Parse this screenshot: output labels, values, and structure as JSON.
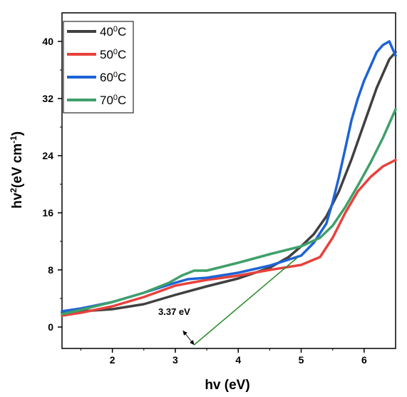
{
  "chart_data": {
    "type": "line",
    "xlabel": "hv (eV)",
    "ylabel_main": "hv",
    "ylabel_sup": "2",
    "ylabel_rest": "(eV cm",
    "ylabel_sup2": "-1",
    "ylabel_close": ")",
    "xlim": [
      1.2,
      6.5
    ],
    "ylim": [
      -3,
      44
    ],
    "x_ticks": [
      2,
      3,
      4,
      5,
      6
    ],
    "y_ticks": [
      0,
      8,
      16,
      24,
      32,
      40
    ],
    "grid": false,
    "legend_position": "top-left",
    "series": [
      {
        "name_base": "40",
        "name_sup": "0",
        "name_unit": "C",
        "color": "#404040",
        "x": [
          1.2,
          1.5,
          2.0,
          2.5,
          3.0,
          3.5,
          4.0,
          4.5,
          4.8,
          5.0,
          5.2,
          5.4,
          5.6,
          5.8,
          6.0,
          6.2,
          6.4,
          6.5
        ],
        "y": [
          2.0,
          2.2,
          2.5,
          3.2,
          4.5,
          5.7,
          6.8,
          8.3,
          9.8,
          11.3,
          13.0,
          15.5,
          19.0,
          23.5,
          28.5,
          33.5,
          37.5,
          38.5
        ]
      },
      {
        "name_base": "50",
        "name_sup": "0",
        "name_unit": "C",
        "color": "#e8413c",
        "x": [
          1.2,
          1.5,
          2.0,
          2.5,
          3.0,
          3.5,
          4.0,
          4.5,
          5.0,
          5.3,
          5.5,
          5.7,
          5.9,
          6.1,
          6.3,
          6.5
        ],
        "y": [
          1.6,
          2.0,
          2.9,
          4.2,
          5.8,
          6.6,
          7.2,
          8.0,
          8.7,
          9.8,
          12.5,
          16.0,
          19.0,
          21.0,
          22.5,
          23.4
        ]
      },
      {
        "name_base": "60",
        "name_sup": "0",
        "name_unit": "C",
        "color": "#1e63d6",
        "x": [
          1.2,
          1.5,
          2.0,
          2.5,
          3.0,
          3.2,
          3.5,
          4.0,
          4.5,
          5.0,
          5.2,
          5.4,
          5.5,
          5.6,
          5.7,
          5.8,
          5.9,
          6.0,
          6.1,
          6.2,
          6.3,
          6.4,
          6.5
        ],
        "y": [
          2.2,
          2.6,
          3.5,
          4.8,
          6.2,
          6.7,
          6.9,
          7.6,
          8.6,
          10.0,
          11.8,
          14.5,
          17.5,
          21.0,
          25.0,
          29.0,
          32.0,
          34.5,
          36.5,
          38.5,
          39.5,
          40.0,
          38.0
        ]
      },
      {
        "name_base": "70",
        "name_sup": "0",
        "name_unit": "C",
        "color": "#3fa06a",
        "x": [
          1.2,
          1.5,
          2.0,
          2.5,
          2.9,
          3.1,
          3.3,
          3.5,
          4.0,
          4.5,
          5.0,
          5.3,
          5.5,
          5.7,
          5.9,
          6.1,
          6.3,
          6.5
        ],
        "y": [
          1.8,
          2.4,
          3.5,
          4.8,
          6.2,
          7.2,
          7.9,
          7.9,
          9.0,
          10.2,
          11.3,
          12.5,
          14.2,
          16.8,
          19.8,
          23.0,
          26.5,
          30.5
        ]
      }
    ],
    "annotation": {
      "text": "3.37 eV",
      "line_color": "#2e8b2e",
      "line": [
        [
          3.3,
          -2.5
        ],
        [
          4.95,
          9.8
        ]
      ],
      "arrow_target": [
        3.3,
        -2.5
      ],
      "arrow_from": [
        3.12,
        -0.5
      ]
    }
  }
}
